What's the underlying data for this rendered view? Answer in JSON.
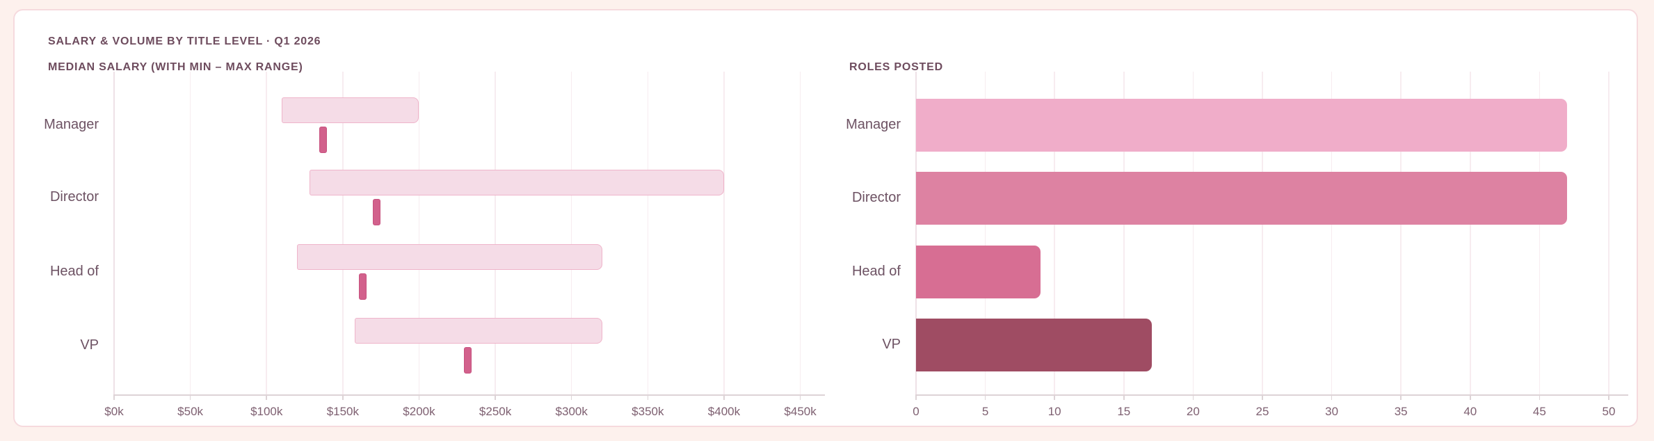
{
  "header": {
    "title": "SALARY & VOLUME BY TITLE LEVEL · Q1 2026"
  },
  "colors": {
    "page_bg": "#fdf1ed",
    "card_bg": "#ffffff",
    "card_border": "#f6dade",
    "heading_text": "#6e4c5e",
    "tick_text": "#7e6071",
    "category_text": "#6d5263",
    "gridline": "#f7ecf0",
    "axis_line": "#ddd3d6",
    "range_bar_fill": "#f5dce7",
    "range_bar_border": "#efb4ca",
    "median_tick": "#d2618c"
  },
  "chart_data": [
    {
      "type": "bar",
      "subtype": "horizontal-range-bar-with-median",
      "title": "MEDIAN SALARY (WITH MIN – MAX RANGE)",
      "categories": [
        "Manager",
        "Director",
        "Head of",
        "VP"
      ],
      "series": [
        {
          "name": "min_salary_k",
          "values": [
            110,
            128,
            120,
            158
          ]
        },
        {
          "name": "median_salary_k",
          "values": [
            137,
            172,
            163,
            232
          ]
        },
        {
          "name": "max_salary_k",
          "values": [
            200,
            400,
            320,
            320
          ]
        }
      ],
      "x_ticks": [
        "$0k",
        "$50k",
        "$100k",
        "$150k",
        "$200k",
        "$250k",
        "$300k",
        "$350k",
        "$400k",
        "$450k"
      ],
      "xlabel": "",
      "ylabel": "",
      "xlim": [
        0,
        450
      ],
      "grid": true,
      "legend_position": "none"
    },
    {
      "type": "bar",
      "subtype": "horizontal-bar",
      "title": "ROLES POSTED",
      "categories": [
        "Manager",
        "Director",
        "Head of",
        "VP"
      ],
      "values": [
        47,
        47,
        9,
        17
      ],
      "bar_colors": [
        "#f0adc9",
        "#dd82a2",
        "#d76e93",
        "#9f4c63"
      ],
      "x_ticks": [
        "0",
        "5",
        "10",
        "15",
        "20",
        "25",
        "30",
        "35",
        "40",
        "45",
        "50"
      ],
      "xlabel": "",
      "ylabel": "",
      "xlim": [
        0,
        50
      ],
      "grid": true,
      "legend_position": "none"
    }
  ]
}
